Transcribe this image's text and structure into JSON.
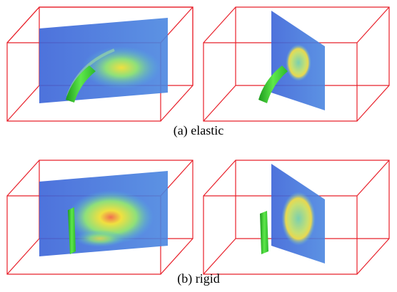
{
  "subfigures": [
    {
      "caption": "(a) elastic"
    },
    {
      "caption": "(b) rigid"
    }
  ]
}
